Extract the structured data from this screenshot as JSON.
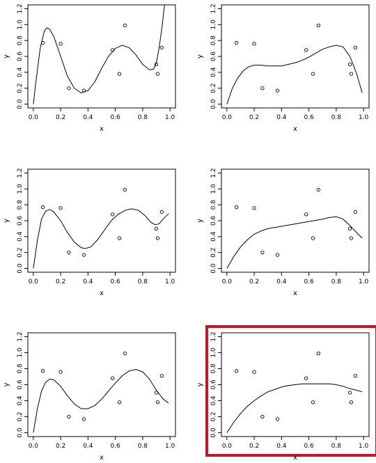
{
  "chart_data": [
    {
      "type": "scatter",
      "xlabel": "x",
      "ylabel": "y",
      "xlim": [
        0,
        1
      ],
      "ylim": [
        0,
        1.2
      ],
      "x_ticks": [
        "0.0",
        "0.2",
        "0.4",
        "0.6",
        "0.8",
        "1.0"
      ],
      "y_ticks": [
        "0.0",
        "0.2",
        "0.4",
        "0.6",
        "0.8",
        "1.0",
        "1.2"
      ],
      "highlighted": false,
      "points": [
        [
          0.07,
          0.77
        ],
        [
          0.2,
          0.76
        ],
        [
          0.26,
          0.2
        ],
        [
          0.37,
          0.17
        ],
        [
          0.58,
          0.68
        ],
        [
          0.63,
          0.38
        ],
        [
          0.67,
          0.99
        ],
        [
          0.9,
          0.5
        ],
        [
          0.91,
          0.38
        ],
        [
          0.94,
          0.71
        ]
      ],
      "curve": [
        [
          0.0,
          0.0
        ],
        [
          0.02,
          0.3
        ],
        [
          0.05,
          0.7
        ],
        [
          0.08,
          0.92
        ],
        [
          0.1,
          0.96
        ],
        [
          0.12,
          0.94
        ],
        [
          0.15,
          0.85
        ],
        [
          0.2,
          0.6
        ],
        [
          0.25,
          0.35
        ],
        [
          0.3,
          0.2
        ],
        [
          0.35,
          0.14
        ],
        [
          0.4,
          0.17
        ],
        [
          0.45,
          0.28
        ],
        [
          0.5,
          0.45
        ],
        [
          0.55,
          0.6
        ],
        [
          0.6,
          0.7
        ],
        [
          0.65,
          0.74
        ],
        [
          0.7,
          0.71
        ],
        [
          0.75,
          0.62
        ],
        [
          0.8,
          0.5
        ],
        [
          0.85,
          0.43
        ],
        [
          0.88,
          0.44
        ],
        [
          0.9,
          0.52
        ],
        [
          0.92,
          0.7
        ],
        [
          0.94,
          0.95
        ],
        [
          0.96,
          1.25
        ]
      ]
    },
    {
      "type": "scatter",
      "xlabel": "x",
      "ylabel": "y",
      "xlim": [
        0,
        1
      ],
      "ylim": [
        0,
        1.2
      ],
      "x_ticks": [
        "0.0",
        "0.2",
        "0.4",
        "0.6",
        "0.8",
        "1.0"
      ],
      "y_ticks": [
        "0.0",
        "0.2",
        "0.4",
        "0.6",
        "0.8",
        "1.0",
        "1.2"
      ],
      "highlighted": false,
      "points": [
        [
          0.07,
          0.77
        ],
        [
          0.2,
          0.76
        ],
        [
          0.26,
          0.2
        ],
        [
          0.37,
          0.17
        ],
        [
          0.58,
          0.68
        ],
        [
          0.63,
          0.38
        ],
        [
          0.67,
          0.99
        ],
        [
          0.9,
          0.5
        ],
        [
          0.91,
          0.38
        ],
        [
          0.94,
          0.71
        ]
      ],
      "curve": [
        [
          0.0,
          0.0
        ],
        [
          0.04,
          0.2
        ],
        [
          0.08,
          0.33
        ],
        [
          0.12,
          0.42
        ],
        [
          0.16,
          0.47
        ],
        [
          0.2,
          0.49
        ],
        [
          0.25,
          0.49
        ],
        [
          0.3,
          0.48
        ],
        [
          0.35,
          0.48
        ],
        [
          0.4,
          0.48
        ],
        [
          0.45,
          0.5
        ],
        [
          0.5,
          0.52
        ],
        [
          0.55,
          0.55
        ],
        [
          0.6,
          0.59
        ],
        [
          0.65,
          0.64
        ],
        [
          0.7,
          0.69
        ],
        [
          0.75,
          0.72
        ],
        [
          0.8,
          0.74
        ],
        [
          0.85,
          0.72
        ],
        [
          0.9,
          0.6
        ],
        [
          0.95,
          0.38
        ],
        [
          0.99,
          0.14
        ]
      ]
    },
    {
      "type": "scatter",
      "xlabel": "x",
      "ylabel": "y",
      "xlim": [
        0,
        1
      ],
      "ylim": [
        0,
        1.2
      ],
      "x_ticks": [
        "0.0",
        "0.2",
        "0.4",
        "0.6",
        "0.8",
        "1.0"
      ],
      "y_ticks": [
        "0.0",
        "0.2",
        "0.4",
        "0.6",
        "0.8",
        "1.0",
        "1.2"
      ],
      "highlighted": false,
      "points": [
        [
          0.07,
          0.77
        ],
        [
          0.2,
          0.76
        ],
        [
          0.26,
          0.2
        ],
        [
          0.37,
          0.17
        ],
        [
          0.58,
          0.68
        ],
        [
          0.63,
          0.38
        ],
        [
          0.67,
          0.99
        ],
        [
          0.9,
          0.5
        ],
        [
          0.91,
          0.38
        ],
        [
          0.94,
          0.71
        ]
      ],
      "curve": [
        [
          0.0,
          0.0
        ],
        [
          0.03,
          0.35
        ],
        [
          0.06,
          0.62
        ],
        [
          0.09,
          0.72
        ],
        [
          0.12,
          0.74
        ],
        [
          0.15,
          0.71
        ],
        [
          0.2,
          0.6
        ],
        [
          0.25,
          0.45
        ],
        [
          0.3,
          0.33
        ],
        [
          0.35,
          0.26
        ],
        [
          0.38,
          0.25
        ],
        [
          0.42,
          0.27
        ],
        [
          0.47,
          0.36
        ],
        [
          0.52,
          0.48
        ],
        [
          0.57,
          0.6
        ],
        [
          0.62,
          0.68
        ],
        [
          0.67,
          0.73
        ],
        [
          0.72,
          0.75
        ],
        [
          0.77,
          0.73
        ],
        [
          0.82,
          0.66
        ],
        [
          0.86,
          0.58
        ],
        [
          0.89,
          0.55
        ],
        [
          0.92,
          0.56
        ],
        [
          0.95,
          0.62
        ],
        [
          0.99,
          0.69
        ]
      ]
    },
    {
      "type": "scatter",
      "xlabel": "x",
      "ylabel": "y",
      "xlim": [
        0,
        1
      ],
      "ylim": [
        0,
        1.2
      ],
      "x_ticks": [
        "0.0",
        "0.2",
        "0.4",
        "0.6",
        "0.8",
        "1.0"
      ],
      "y_ticks": [
        "0.0",
        "0.2",
        "0.4",
        "0.6",
        "0.8",
        "1.0",
        "1.2"
      ],
      "highlighted": false,
      "points": [
        [
          0.07,
          0.77
        ],
        [
          0.2,
          0.76
        ],
        [
          0.26,
          0.2
        ],
        [
          0.37,
          0.17
        ],
        [
          0.58,
          0.68
        ],
        [
          0.63,
          0.38
        ],
        [
          0.67,
          0.99
        ],
        [
          0.9,
          0.5
        ],
        [
          0.91,
          0.38
        ],
        [
          0.94,
          0.71
        ]
      ],
      "curve": [
        [
          0.0,
          0.0
        ],
        [
          0.05,
          0.15
        ],
        [
          0.1,
          0.27
        ],
        [
          0.15,
          0.36
        ],
        [
          0.2,
          0.43
        ],
        [
          0.25,
          0.47
        ],
        [
          0.3,
          0.5
        ],
        [
          0.4,
          0.53
        ],
        [
          0.5,
          0.56
        ],
        [
          0.6,
          0.59
        ],
        [
          0.7,
          0.62
        ],
        [
          0.75,
          0.64
        ],
        [
          0.8,
          0.65
        ],
        [
          0.85,
          0.62
        ],
        [
          0.9,
          0.54
        ],
        [
          0.95,
          0.45
        ],
        [
          0.99,
          0.38
        ]
      ]
    },
    {
      "type": "scatter",
      "xlabel": "x",
      "ylabel": "y",
      "xlim": [
        0,
        1
      ],
      "ylim": [
        0,
        1.2
      ],
      "x_ticks": [
        "0.0",
        "0.2",
        "0.4",
        "0.6",
        "0.8",
        "1.0"
      ],
      "y_ticks": [
        "0.0",
        "0.2",
        "0.4",
        "0.6",
        "0.8",
        "1.0",
        "1.2"
      ],
      "highlighted": false,
      "points": [
        [
          0.07,
          0.77
        ],
        [
          0.2,
          0.76
        ],
        [
          0.26,
          0.2
        ],
        [
          0.37,
          0.17
        ],
        [
          0.58,
          0.68
        ],
        [
          0.63,
          0.38
        ],
        [
          0.67,
          0.99
        ],
        [
          0.9,
          0.5
        ],
        [
          0.91,
          0.38
        ],
        [
          0.94,
          0.71
        ]
      ],
      "curve": [
        [
          0.0,
          0.0
        ],
        [
          0.03,
          0.3
        ],
        [
          0.06,
          0.52
        ],
        [
          0.09,
          0.63
        ],
        [
          0.12,
          0.67
        ],
        [
          0.15,
          0.66
        ],
        [
          0.2,
          0.58
        ],
        [
          0.25,
          0.46
        ],
        [
          0.3,
          0.36
        ],
        [
          0.35,
          0.3
        ],
        [
          0.4,
          0.3
        ],
        [
          0.45,
          0.34
        ],
        [
          0.5,
          0.42
        ],
        [
          0.55,
          0.52
        ],
        [
          0.6,
          0.62
        ],
        [
          0.65,
          0.71
        ],
        [
          0.7,
          0.77
        ],
        [
          0.75,
          0.79
        ],
        [
          0.8,
          0.76
        ],
        [
          0.85,
          0.67
        ],
        [
          0.9,
          0.53
        ],
        [
          0.95,
          0.42
        ],
        [
          0.99,
          0.37
        ]
      ]
    },
    {
      "type": "scatter",
      "xlabel": "x",
      "ylabel": "y",
      "xlim": [
        0,
        1
      ],
      "ylim": [
        0,
        1.2
      ],
      "x_ticks": [
        "0.0",
        "0.2",
        "0.4",
        "0.6",
        "0.8",
        "1.0"
      ],
      "y_ticks": [
        "0.0",
        "0.2",
        "0.4",
        "0.6",
        "0.8",
        "1.0",
        "1.2"
      ],
      "highlighted": true,
      "points": [
        [
          0.07,
          0.77
        ],
        [
          0.2,
          0.76
        ],
        [
          0.26,
          0.2
        ],
        [
          0.37,
          0.17
        ],
        [
          0.58,
          0.68
        ],
        [
          0.63,
          0.38
        ],
        [
          0.67,
          0.99
        ],
        [
          0.9,
          0.5
        ],
        [
          0.91,
          0.38
        ],
        [
          0.94,
          0.71
        ]
      ],
      "curve": [
        [
          0.0,
          0.0
        ],
        [
          0.05,
          0.13
        ],
        [
          0.1,
          0.24
        ],
        [
          0.15,
          0.33
        ],
        [
          0.2,
          0.4
        ],
        [
          0.25,
          0.46
        ],
        [
          0.3,
          0.51
        ],
        [
          0.35,
          0.54
        ],
        [
          0.4,
          0.57
        ],
        [
          0.45,
          0.59
        ],
        [
          0.5,
          0.6
        ],
        [
          0.55,
          0.61
        ],
        [
          0.6,
          0.61
        ],
        [
          0.65,
          0.61
        ],
        [
          0.7,
          0.61
        ],
        [
          0.75,
          0.61
        ],
        [
          0.8,
          0.6
        ],
        [
          0.85,
          0.58
        ],
        [
          0.9,
          0.55
        ],
        [
          0.95,
          0.53
        ],
        [
          0.99,
          0.51
        ]
      ]
    }
  ],
  "highlight_color": "#c8161e",
  "line_color": "#000000"
}
